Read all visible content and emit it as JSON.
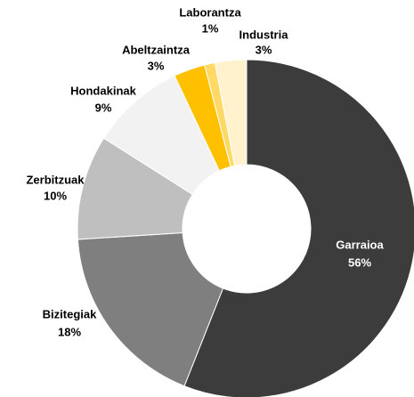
{
  "chart_data": {
    "type": "donut",
    "categories": [
      "Garraioa",
      "Bizitegiak",
      "Zerbitzuak",
      "Hondakinak",
      "Abeltzaintza",
      "Laborantza",
      "Industria"
    ],
    "values": [
      56,
      18,
      10,
      9,
      3,
      1,
      3
    ],
    "value_labels": [
      "56%",
      "18%",
      "10%",
      "9%",
      "3%",
      "1%",
      "3%"
    ],
    "colors": [
      "#3c3c3c",
      "#7f7f7f",
      "#bfbfbf",
      "#f2f2f2",
      "#ffc000",
      "#ffd966",
      "#fff2cc"
    ]
  }
}
